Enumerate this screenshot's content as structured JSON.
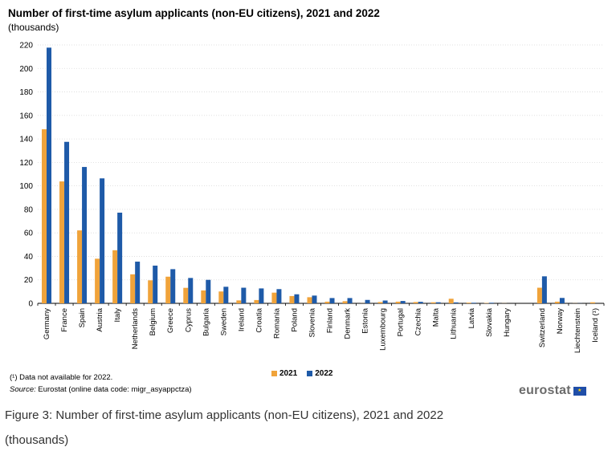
{
  "chart_data": {
    "type": "bar",
    "title": "Number of first-time asylum applicants (non-EU citizens), 2021 and 2022",
    "subtitle": "(thousands)",
    "ylim": [
      0,
      220
    ],
    "yticks": [
      0,
      20,
      40,
      60,
      80,
      100,
      120,
      140,
      160,
      180,
      200,
      220
    ],
    "grid": true,
    "legend_position": "bottom",
    "categories": [
      "Germany",
      "France",
      "Spain",
      "Austria",
      "Italy",
      "Netherlands",
      "Belgium",
      "Greece",
      "Cyprus",
      "Bulgaria",
      "Sweden",
      "Ireland",
      "Croatia",
      "Romania",
      "Poland",
      "Slovenia",
      "Finland",
      "Denmark",
      "Estonia",
      "Luxembourg",
      "Portugal",
      "Czechia",
      "Malta",
      "Lithuania",
      "Latvia",
      "Slovakia",
      "Hungary",
      "",
      "Switzerland",
      "Norway",
      "Liechtenstein",
      "Iceland (¹)"
    ],
    "series": [
      {
        "name": "2021",
        "color": "#f0a33a",
        "values": [
          148.2,
          103.8,
          62.1,
          38.0,
          45.2,
          24.7,
          19.6,
          22.7,
          13.2,
          11.0,
          10.1,
          2.5,
          2.8,
          9.1,
          6.2,
          5.2,
          1.4,
          1.8,
          0.1,
          1.1,
          1.4,
          1.1,
          0.9,
          3.9,
          0.6,
          0.3,
          0.1,
          null,
          13.3,
          1.4,
          0.1,
          0.9
        ]
      },
      {
        "name": "2022",
        "color": "#1e5aa8",
        "values": [
          217.7,
          137.5,
          116.1,
          106.4,
          77.2,
          35.5,
          32.1,
          29.1,
          21.6,
          20.0,
          14.1,
          13.3,
          12.7,
          12.1,
          7.7,
          6.6,
          4.5,
          4.5,
          2.9,
          2.4,
          2.0,
          1.3,
          0.9,
          0.8,
          0.5,
          0.5,
          0.0,
          null,
          23.0,
          4.6,
          0.1,
          null
        ]
      }
    ]
  },
  "footnote": "(¹) Data not available for 2022.",
  "source": {
    "label": "Source:",
    "text": " Eurostat (online data code: migr_asyappctza)"
  },
  "logo": {
    "text": "eurostat",
    "flag_glyph": "★"
  },
  "caption": "Figure 3: Number of first-time asylum applicants (non-EU citizens), 2021 and 2022",
  "caption_sub": "(thousands)"
}
